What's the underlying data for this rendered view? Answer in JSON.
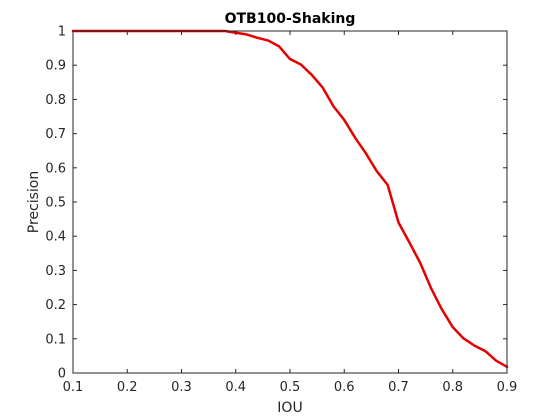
{
  "chart_data": {
    "type": "line",
    "title": "OTB100-Shaking",
    "xlabel": "IOU",
    "ylabel": "Precision",
    "xlim": [
      0.1,
      0.9
    ],
    "ylim": [
      0,
      1
    ],
    "x_ticks": [
      0.1,
      0.2,
      0.3,
      0.4,
      0.5,
      0.6,
      0.7,
      0.8,
      0.9
    ],
    "y_ticks": [
      0,
      0.1,
      0.2,
      0.3,
      0.4,
      0.5,
      0.6,
      0.7,
      0.8,
      0.9,
      1
    ],
    "x_tick_labels": [
      "0.1",
      "0.2",
      "0.3",
      "0.4",
      "0.5",
      "0.6",
      "0.7",
      "0.8",
      "0.9"
    ],
    "y_tick_labels": [
      "0",
      "0.1",
      "0.2",
      "0.3",
      "0.4",
      "0.5",
      "0.6",
      "0.7",
      "0.8",
      "0.9",
      "1"
    ],
    "grid": false,
    "series": [
      {
        "color": "#e60000",
        "x": [
          0.1,
          0.12,
          0.14,
          0.16,
          0.18,
          0.2,
          0.22,
          0.24,
          0.26,
          0.28,
          0.3,
          0.32,
          0.34,
          0.36,
          0.38,
          0.4,
          0.42,
          0.44,
          0.46,
          0.48,
          0.5,
          0.52,
          0.54,
          0.56,
          0.58,
          0.6,
          0.62,
          0.64,
          0.66,
          0.68,
          0.7,
          0.72,
          0.74,
          0.76,
          0.78,
          0.8,
          0.82,
          0.84,
          0.86,
          0.88,
          0.9
        ],
        "y": [
          1,
          1,
          1,
          1,
          1,
          1,
          1,
          1,
          1,
          1,
          1,
          1,
          1,
          1,
          1,
          0.995,
          0.99,
          0.98,
          0.972,
          0.955,
          0.918,
          0.902,
          0.872,
          0.835,
          0.78,
          0.74,
          0.688,
          0.642,
          0.59,
          0.55,
          0.44,
          0.382,
          0.322,
          0.248,
          0.186,
          0.134,
          0.101,
          0.08,
          0.064,
          0.036,
          0.018
        ]
      }
    ]
  }
}
